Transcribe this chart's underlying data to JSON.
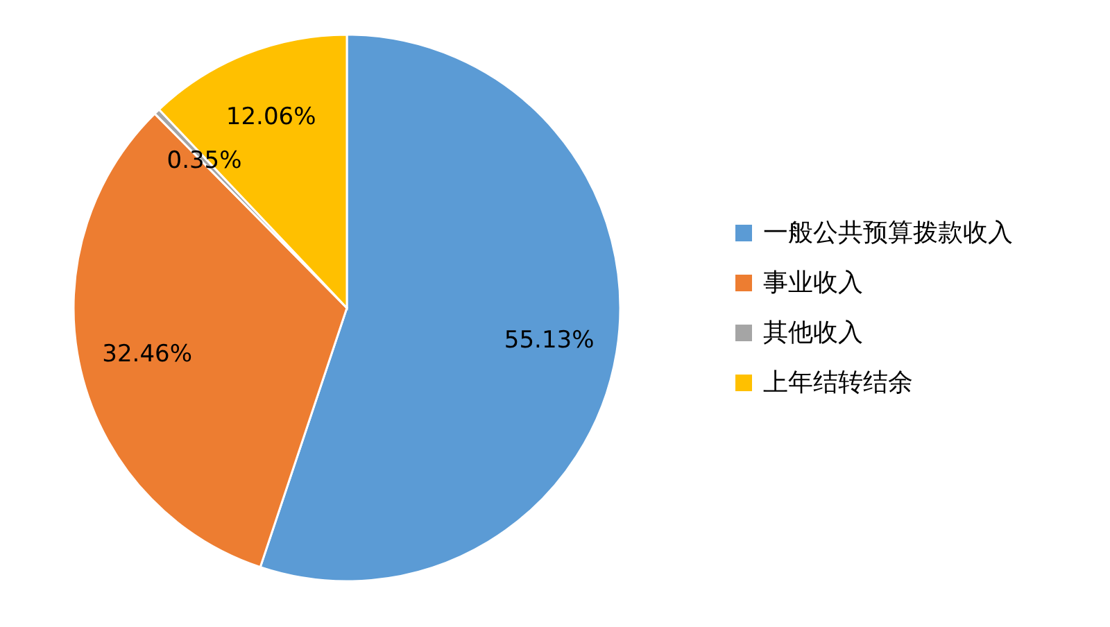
{
  "chart_data": {
    "type": "pie",
    "categories": [
      "一般公共预算拨款收入",
      "事业收入",
      "其他收入",
      "上年结转结余"
    ],
    "values": [
      55.13,
      32.46,
      0.35,
      12.06
    ],
    "colors": [
      "#5b9bd5",
      "#ed7d31",
      "#a5a5a5",
      "#ffc000"
    ],
    "value_labels": [
      "55.13%",
      "32.46%",
      "0.35%",
      "12.06%"
    ],
    "legend": "right"
  }
}
